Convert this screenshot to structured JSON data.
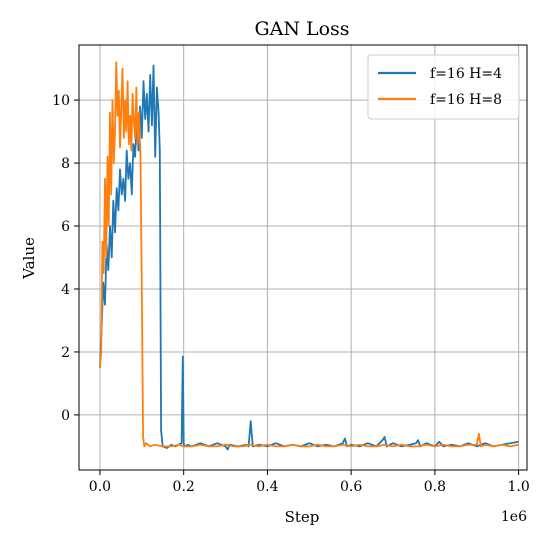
{
  "chart_data": {
    "type": "line",
    "title": "GAN Loss",
    "xlabel": "Step",
    "ylabel": "Value",
    "x_offset_label": "1e6",
    "xlim": [
      -0.05,
      1.02
    ],
    "ylim": [
      -1.75,
      11.75
    ],
    "xticks": [
      0.0,
      0.2,
      0.4,
      0.6,
      0.8,
      1.0
    ],
    "xtick_labels": [
      "0.0",
      "0.2",
      "0.4",
      "0.6",
      "0.8",
      "1.0"
    ],
    "yticks": [
      0,
      2,
      4,
      6,
      8,
      10
    ],
    "ytick_labels": [
      "0",
      "2",
      "4",
      "6",
      "8",
      "10"
    ],
    "grid": true,
    "legend_position": "top-right",
    "series": [
      {
        "name": "f=16 H=4",
        "color": "#1f77b4",
        "x": [
          0.0,
          0.004,
          0.008,
          0.012,
          0.016,
          0.02,
          0.024,
          0.028,
          0.032,
          0.036,
          0.04,
          0.044,
          0.048,
          0.052,
          0.056,
          0.06,
          0.064,
          0.068,
          0.072,
          0.076,
          0.08,
          0.084,
          0.088,
          0.092,
          0.096,
          0.1,
          0.104,
          0.108,
          0.112,
          0.116,
          0.12,
          0.124,
          0.128,
          0.132,
          0.136,
          0.14,
          0.143,
          0.146,
          0.15,
          0.16,
          0.17,
          0.18,
          0.195,
          0.198,
          0.2,
          0.202,
          0.21,
          0.22,
          0.24,
          0.26,
          0.28,
          0.3,
          0.305,
          0.31,
          0.33,
          0.35,
          0.355,
          0.36,
          0.365,
          0.38,
          0.4,
          0.42,
          0.44,
          0.46,
          0.48,
          0.5,
          0.52,
          0.54,
          0.56,
          0.58,
          0.585,
          0.59,
          0.6,
          0.62,
          0.64,
          0.66,
          0.675,
          0.68,
          0.685,
          0.7,
          0.72,
          0.74,
          0.755,
          0.76,
          0.765,
          0.78,
          0.8,
          0.81,
          0.82,
          0.84,
          0.86,
          0.88,
          0.9,
          0.92,
          0.94,
          0.96,
          0.98,
          1.0
        ],
        "y": [
          1.5,
          2.8,
          4.2,
          3.5,
          5.4,
          4.6,
          6.0,
          5.0,
          6.8,
          5.8,
          7.2,
          6.5,
          7.8,
          7.0,
          7.5,
          6.8,
          8.4,
          7.5,
          8.0,
          7.0,
          8.6,
          8.2,
          9.5,
          8.4,
          9.8,
          8.8,
          10.6,
          9.4,
          10.2,
          9.0,
          10.8,
          9.2,
          11.1,
          8.2,
          10.4,
          9.6,
          8.4,
          -0.5,
          -1.0,
          -1.05,
          -0.95,
          -1.0,
          -0.9,
          1.85,
          -0.9,
          -1.0,
          -0.95,
          -1.0,
          -0.9,
          -1.0,
          -0.9,
          -1.0,
          -1.1,
          -0.95,
          -1.0,
          -0.95,
          -1.0,
          -0.2,
          -1.0,
          -0.95,
          -1.0,
          -0.9,
          -1.0,
          -0.95,
          -1.0,
          -0.9,
          -1.0,
          -0.95,
          -1.0,
          -0.9,
          -0.75,
          -1.0,
          -0.95,
          -1.0,
          -0.9,
          -1.0,
          -0.8,
          -0.7,
          -1.0,
          -0.9,
          -1.0,
          -0.95,
          -0.9,
          -0.8,
          -1.0,
          -0.9,
          -1.0,
          -0.85,
          -1.0,
          -0.95,
          -1.0,
          -0.9,
          -1.0,
          -0.9,
          -1.0,
          -0.95,
          -0.9,
          -0.85
        ]
      },
      {
        "name": "f=16 H=8",
        "color": "#ff7f0e",
        "x": [
          0.0,
          0.003,
          0.006,
          0.009,
          0.012,
          0.015,
          0.018,
          0.021,
          0.024,
          0.027,
          0.03,
          0.033,
          0.036,
          0.039,
          0.042,
          0.045,
          0.048,
          0.051,
          0.054,
          0.057,
          0.06,
          0.063,
          0.066,
          0.069,
          0.072,
          0.075,
          0.078,
          0.081,
          0.084,
          0.087,
          0.09,
          0.093,
          0.097,
          0.1,
          0.103,
          0.106,
          0.11,
          0.12,
          0.13,
          0.15,
          0.17,
          0.19,
          0.2,
          0.22,
          0.24,
          0.26,
          0.28,
          0.3,
          0.32,
          0.34,
          0.36,
          0.38,
          0.4,
          0.42,
          0.44,
          0.46,
          0.48,
          0.5,
          0.52,
          0.54,
          0.56,
          0.58,
          0.6,
          0.62,
          0.64,
          0.66,
          0.68,
          0.7,
          0.72,
          0.74,
          0.76,
          0.78,
          0.8,
          0.82,
          0.84,
          0.86,
          0.88,
          0.9,
          0.905,
          0.91,
          0.92,
          0.94,
          0.96,
          0.98,
          1.0
        ],
        "y": [
          1.5,
          2.0,
          5.5,
          4.5,
          7.5,
          5.0,
          8.2,
          6.0,
          9.6,
          7.0,
          10.0,
          8.0,
          9.0,
          11.2,
          9.5,
          10.3,
          8.5,
          9.8,
          11.0,
          8.8,
          10.0,
          9.0,
          10.6,
          8.6,
          9.5,
          8.4,
          10.2,
          9.4,
          8.8,
          10.4,
          8.6,
          9.6,
          8.2,
          4.0,
          -0.7,
          -1.0,
          -0.9,
          -1.0,
          -0.95,
          -1.0,
          -1.0,
          -0.95,
          -1.0,
          -1.0,
          -0.95,
          -1.0,
          -1.0,
          -0.95,
          -1.0,
          -1.0,
          -0.95,
          -1.0,
          -0.95,
          -1.0,
          -1.0,
          -0.95,
          -1.0,
          -1.0,
          -0.95,
          -1.0,
          -1.0,
          -0.95,
          -1.0,
          -0.95,
          -1.0,
          -1.0,
          -0.95,
          -1.0,
          -0.95,
          -1.0,
          -1.0,
          -0.95,
          -1.0,
          -0.95,
          -1.0,
          -1.0,
          -0.95,
          -0.95,
          -0.6,
          -1.0,
          -0.95,
          -1.0,
          -0.95,
          -1.0,
          -0.95
        ]
      }
    ]
  }
}
